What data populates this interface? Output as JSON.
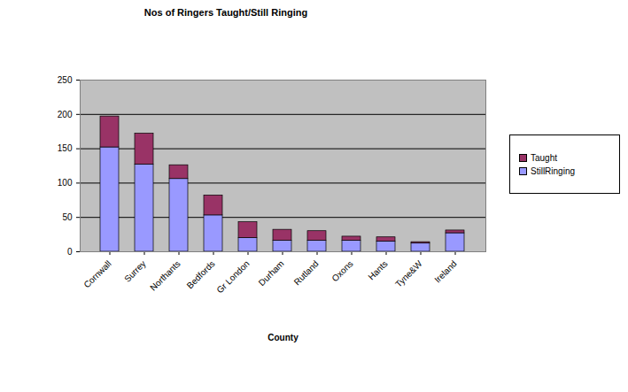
{
  "chart_data": {
    "type": "bar",
    "title": "Nos of Ringers Taught/Still Ringing",
    "x_label": "County",
    "categories": [
      "Cornwall",
      "Surrey",
      "Northants",
      "Bedfords",
      "Gr London",
      "Durham",
      "Rutland",
      "Oxons",
      "Hants",
      "Tyne&W",
      "Ireland"
    ],
    "series": [
      {
        "name": "StillRinging",
        "color": "#9999ff",
        "values": [
          152,
          127,
          106,
          53,
          20,
          16,
          16,
          16,
          15,
          12,
          27
        ]
      },
      {
        "name": "Taught",
        "color": "#993366",
        "values": [
          45,
          45,
          20,
          29,
          23,
          16,
          14,
          6,
          6,
          2,
          4
        ]
      }
    ],
    "ylim": [
      0,
      250
    ],
    "yticks": [
      0,
      50,
      100,
      150,
      200,
      250
    ],
    "grid": true,
    "stacked": true,
    "legend": "right"
  }
}
